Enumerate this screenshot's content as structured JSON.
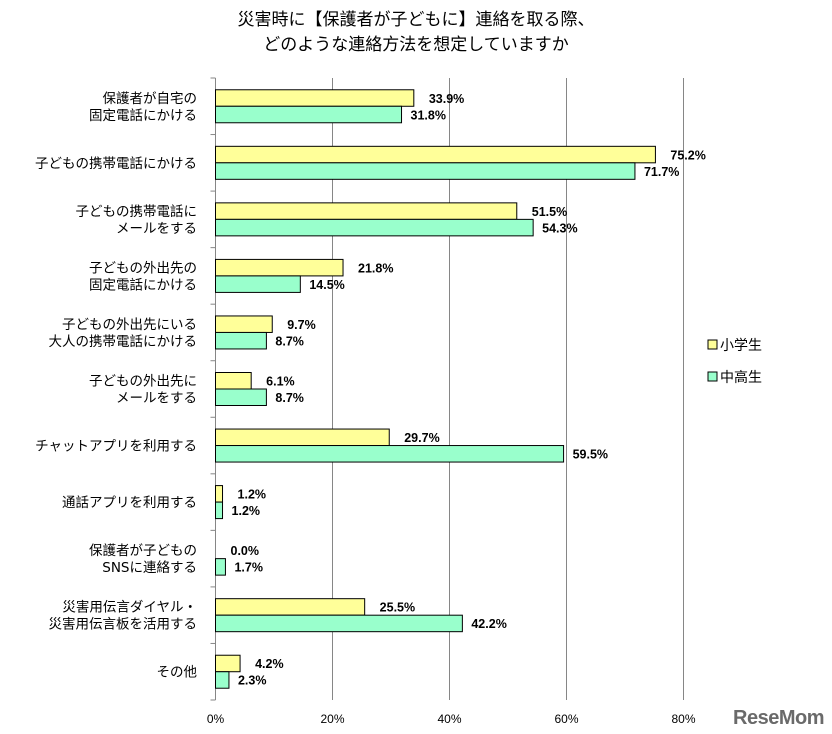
{
  "chart_data": {
    "type": "bar",
    "orientation": "horizontal",
    "title_lines": [
      "災害時に【保護者が子どもに】連絡を取る際、",
      "どのような連絡方法を想定していますか"
    ],
    "categories": [
      [
        "保護者が自宅の",
        "固定電話にかける"
      ],
      [
        "子どもの携帯電話にかける"
      ],
      [
        "子どもの携帯電話に",
        "メールをする"
      ],
      [
        "子どもの外出先の",
        "固定電話にかける"
      ],
      [
        "子どもの外出先にいる",
        "大人の携帯電話にかける"
      ],
      [
        "子どもの外出先に",
        "メールをする"
      ],
      [
        "チャットアプリを利用する"
      ],
      [
        "通話アプリを利用する"
      ],
      [
        "保護者が子どもの",
        "SNSに連絡する"
      ],
      [
        "災害用伝言ダイヤル・",
        "災害用伝言板を活用する"
      ],
      [
        "その他"
      ]
    ],
    "series": [
      {
        "name": "小学生",
        "color": "#FFFF99",
        "values": [
          33.9,
          75.2,
          51.5,
          21.8,
          9.7,
          6.1,
          29.7,
          1.2,
          0.0,
          25.5,
          4.2
        ]
      },
      {
        "name": "中高生",
        "color": "#99FFCC",
        "values": [
          31.8,
          71.7,
          54.3,
          14.5,
          8.7,
          8.7,
          59.5,
          1.2,
          1.7,
          42.2,
          2.3
        ]
      }
    ],
    "xlim": [
      0,
      80
    ],
    "xticks": [
      0,
      20,
      40,
      60,
      80
    ],
    "tick_suffix": "%",
    "value_suffix": "%",
    "grid": "vertical",
    "legend": "right"
  },
  "watermark": "ReseMom"
}
